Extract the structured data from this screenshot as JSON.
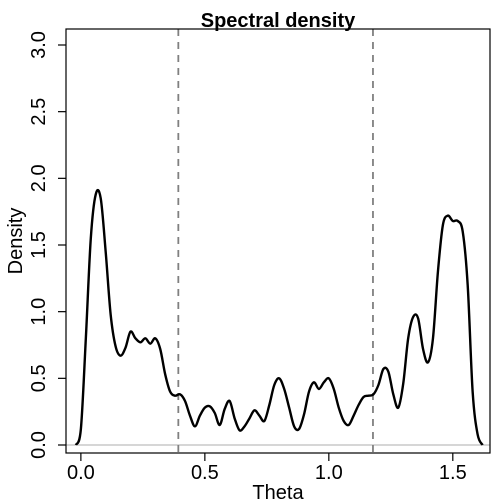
{
  "chart_data": {
    "type": "line",
    "title": "Spectral density",
    "xlabel": "Theta",
    "ylabel": "Density",
    "xlim": [
      -0.06,
      1.65
    ],
    "ylim": [
      -0.06,
      3.12
    ],
    "xticks": [
      0.0,
      0.5,
      1.0,
      1.5
    ],
    "xtick_labels": [
      "0.0",
      "0.5",
      "1.0",
      "1.5"
    ],
    "yticks": [
      0.0,
      0.5,
      1.0,
      1.5,
      2.0,
      2.5,
      3.0
    ],
    "ytick_labels": [
      "0.0",
      "0.5",
      "1.0",
      "1.5",
      "2.0",
      "2.5",
      "3.0"
    ],
    "grid": false,
    "legend": "none",
    "reference_lines": {
      "vertical_dashed": [
        0.393,
        1.178
      ],
      "horizontal": [
        0.0
      ]
    },
    "series": [
      {
        "x": [
          -0.02,
          0.0,
          0.02,
          0.04,
          0.06,
          0.08,
          0.1,
          0.12,
          0.14,
          0.16,
          0.18,
          0.2,
          0.22,
          0.24,
          0.26,
          0.28,
          0.3,
          0.32,
          0.34,
          0.36,
          0.38,
          0.4,
          0.42,
          0.44,
          0.46,
          0.48,
          0.5,
          0.52,
          0.54,
          0.56,
          0.58,
          0.6,
          0.62,
          0.64,
          0.66,
          0.68,
          0.7,
          0.72,
          0.74,
          0.76,
          0.78,
          0.8,
          0.82,
          0.84,
          0.86,
          0.88,
          0.9,
          0.92,
          0.94,
          0.96,
          0.98,
          1.0,
          1.02,
          1.04,
          1.06,
          1.08,
          1.1,
          1.12,
          1.14,
          1.16,
          1.18,
          1.2,
          1.22,
          1.24,
          1.26,
          1.28,
          1.3,
          1.32,
          1.34,
          1.36,
          1.38,
          1.4,
          1.42,
          1.44,
          1.46,
          1.48,
          1.5,
          1.52,
          1.54,
          1.56,
          1.58,
          1.6,
          1.62
        ],
        "y": [
          0.0,
          0.12,
          0.8,
          1.55,
          1.88,
          1.85,
          1.45,
          0.98,
          0.74,
          0.67,
          0.73,
          0.85,
          0.8,
          0.77,
          0.8,
          0.76,
          0.8,
          0.72,
          0.53,
          0.4,
          0.37,
          0.38,
          0.33,
          0.22,
          0.14,
          0.22,
          0.28,
          0.29,
          0.24,
          0.15,
          0.27,
          0.33,
          0.2,
          0.11,
          0.14,
          0.2,
          0.26,
          0.22,
          0.18,
          0.3,
          0.45,
          0.5,
          0.42,
          0.28,
          0.14,
          0.12,
          0.23,
          0.4,
          0.47,
          0.42,
          0.47,
          0.5,
          0.42,
          0.28,
          0.18,
          0.15,
          0.22,
          0.3,
          0.36,
          0.37,
          0.38,
          0.45,
          0.57,
          0.55,
          0.38,
          0.28,
          0.46,
          0.8,
          0.96,
          0.95,
          0.72,
          0.62,
          0.8,
          1.3,
          1.65,
          1.72,
          1.68,
          1.68,
          1.6,
          1.2,
          0.4,
          0.08,
          0.0
        ]
      }
    ]
  }
}
